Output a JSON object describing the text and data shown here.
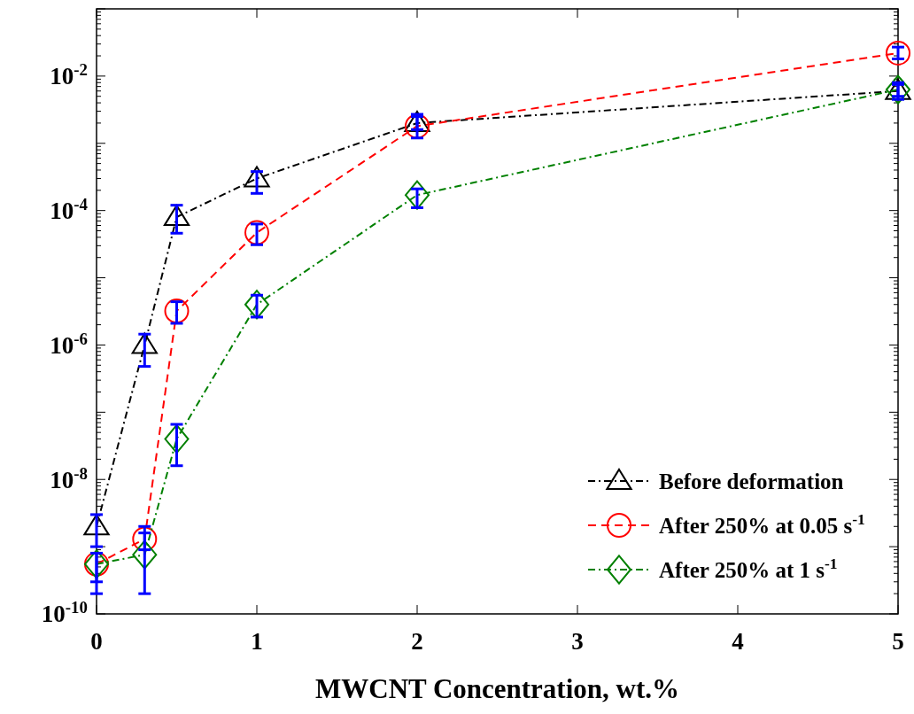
{
  "chart_data": {
    "type": "line",
    "xlabel": "MWCNT Concentration, wt.%",
    "log": "y",
    "xlim": [
      0,
      5
    ],
    "xticks": [
      0,
      1,
      2,
      3,
      4,
      5
    ],
    "ylim": [
      1e-10,
      0.1
    ],
    "yticks": [
      {
        "value": 1e-10,
        "label": "10$^{-10}$"
      },
      {
        "value": 1e-09,
        "label": null
      },
      {
        "value": 1e-08,
        "label": "10$^{-8}$"
      },
      {
        "value": 1e-07,
        "label": null
      },
      {
        "value": 1e-06,
        "label": "10$^{-6}$"
      },
      {
        "value": 1e-05,
        "label": null
      },
      {
        "value": 0.0001,
        "label": "10$^{-4}$"
      },
      {
        "value": 0.001,
        "label": null
      },
      {
        "value": 0.01,
        "label": "10$^{-2}$"
      },
      {
        "value": 0.1,
        "label": null
      }
    ],
    "grid": false,
    "legend": "bottom right",
    "x": [
      0,
      0.3,
      0.5,
      1,
      2,
      5
    ],
    "series": [
      {
        "name": "Before deformation",
        "color": "#000000",
        "marker": "triangle",
        "line_style": "dashdot",
        "values": [
          2e-09,
          1e-06,
          8e-05,
          0.0003,
          0.002,
          0.006
        ],
        "errors": [
          [
            1e-09,
            3e-09
          ],
          [
            4.8e-07,
            1.45e-06
          ],
          [
            4.6e-05,
            0.00012
          ],
          [
            0.00018,
            0.00038
          ],
          [
            0.0016,
            0.0027
          ],
          [
            0.0045,
            0.0075
          ]
        ]
      },
      {
        "name": "After 250% at 0.05 s$^{-1}$",
        "color": "#ff0000",
        "marker": "circle",
        "line_style": "dashed",
        "values": [
          5.5e-10,
          1.3e-09,
          3.2e-06,
          4.7e-05,
          0.0018,
          0.022
        ],
        "errors": [
          [
            2e-10,
            8e-10
          ],
          [
            9e-10,
            2e-09
          ],
          [
            2.1e-06,
            4.4e-06
          ],
          [
            3.1e-05,
            6.3e-05
          ],
          [
            0.0012,
            0.0025
          ],
          [
            0.018,
            0.027
          ]
        ]
      },
      {
        "name": "After 250% at 1 s$^{-1}$",
        "color": "#008000",
        "marker": "diamond",
        "line_style": "dashdot",
        "values": [
          5.5e-10,
          7.6e-10,
          4e-08,
          4e-06,
          0.00017,
          0.0063
        ],
        "errors": [
          [
            3e-10,
            8e-10
          ],
          [
            2e-10,
            1.6e-09
          ],
          [
            1.6e-08,
            6.6e-08
          ],
          [
            2.6e-06,
            5.5e-06
          ],
          [
            0.00011,
            0.00021
          ],
          [
            0.005,
            0.008
          ]
        ]
      }
    ]
  }
}
